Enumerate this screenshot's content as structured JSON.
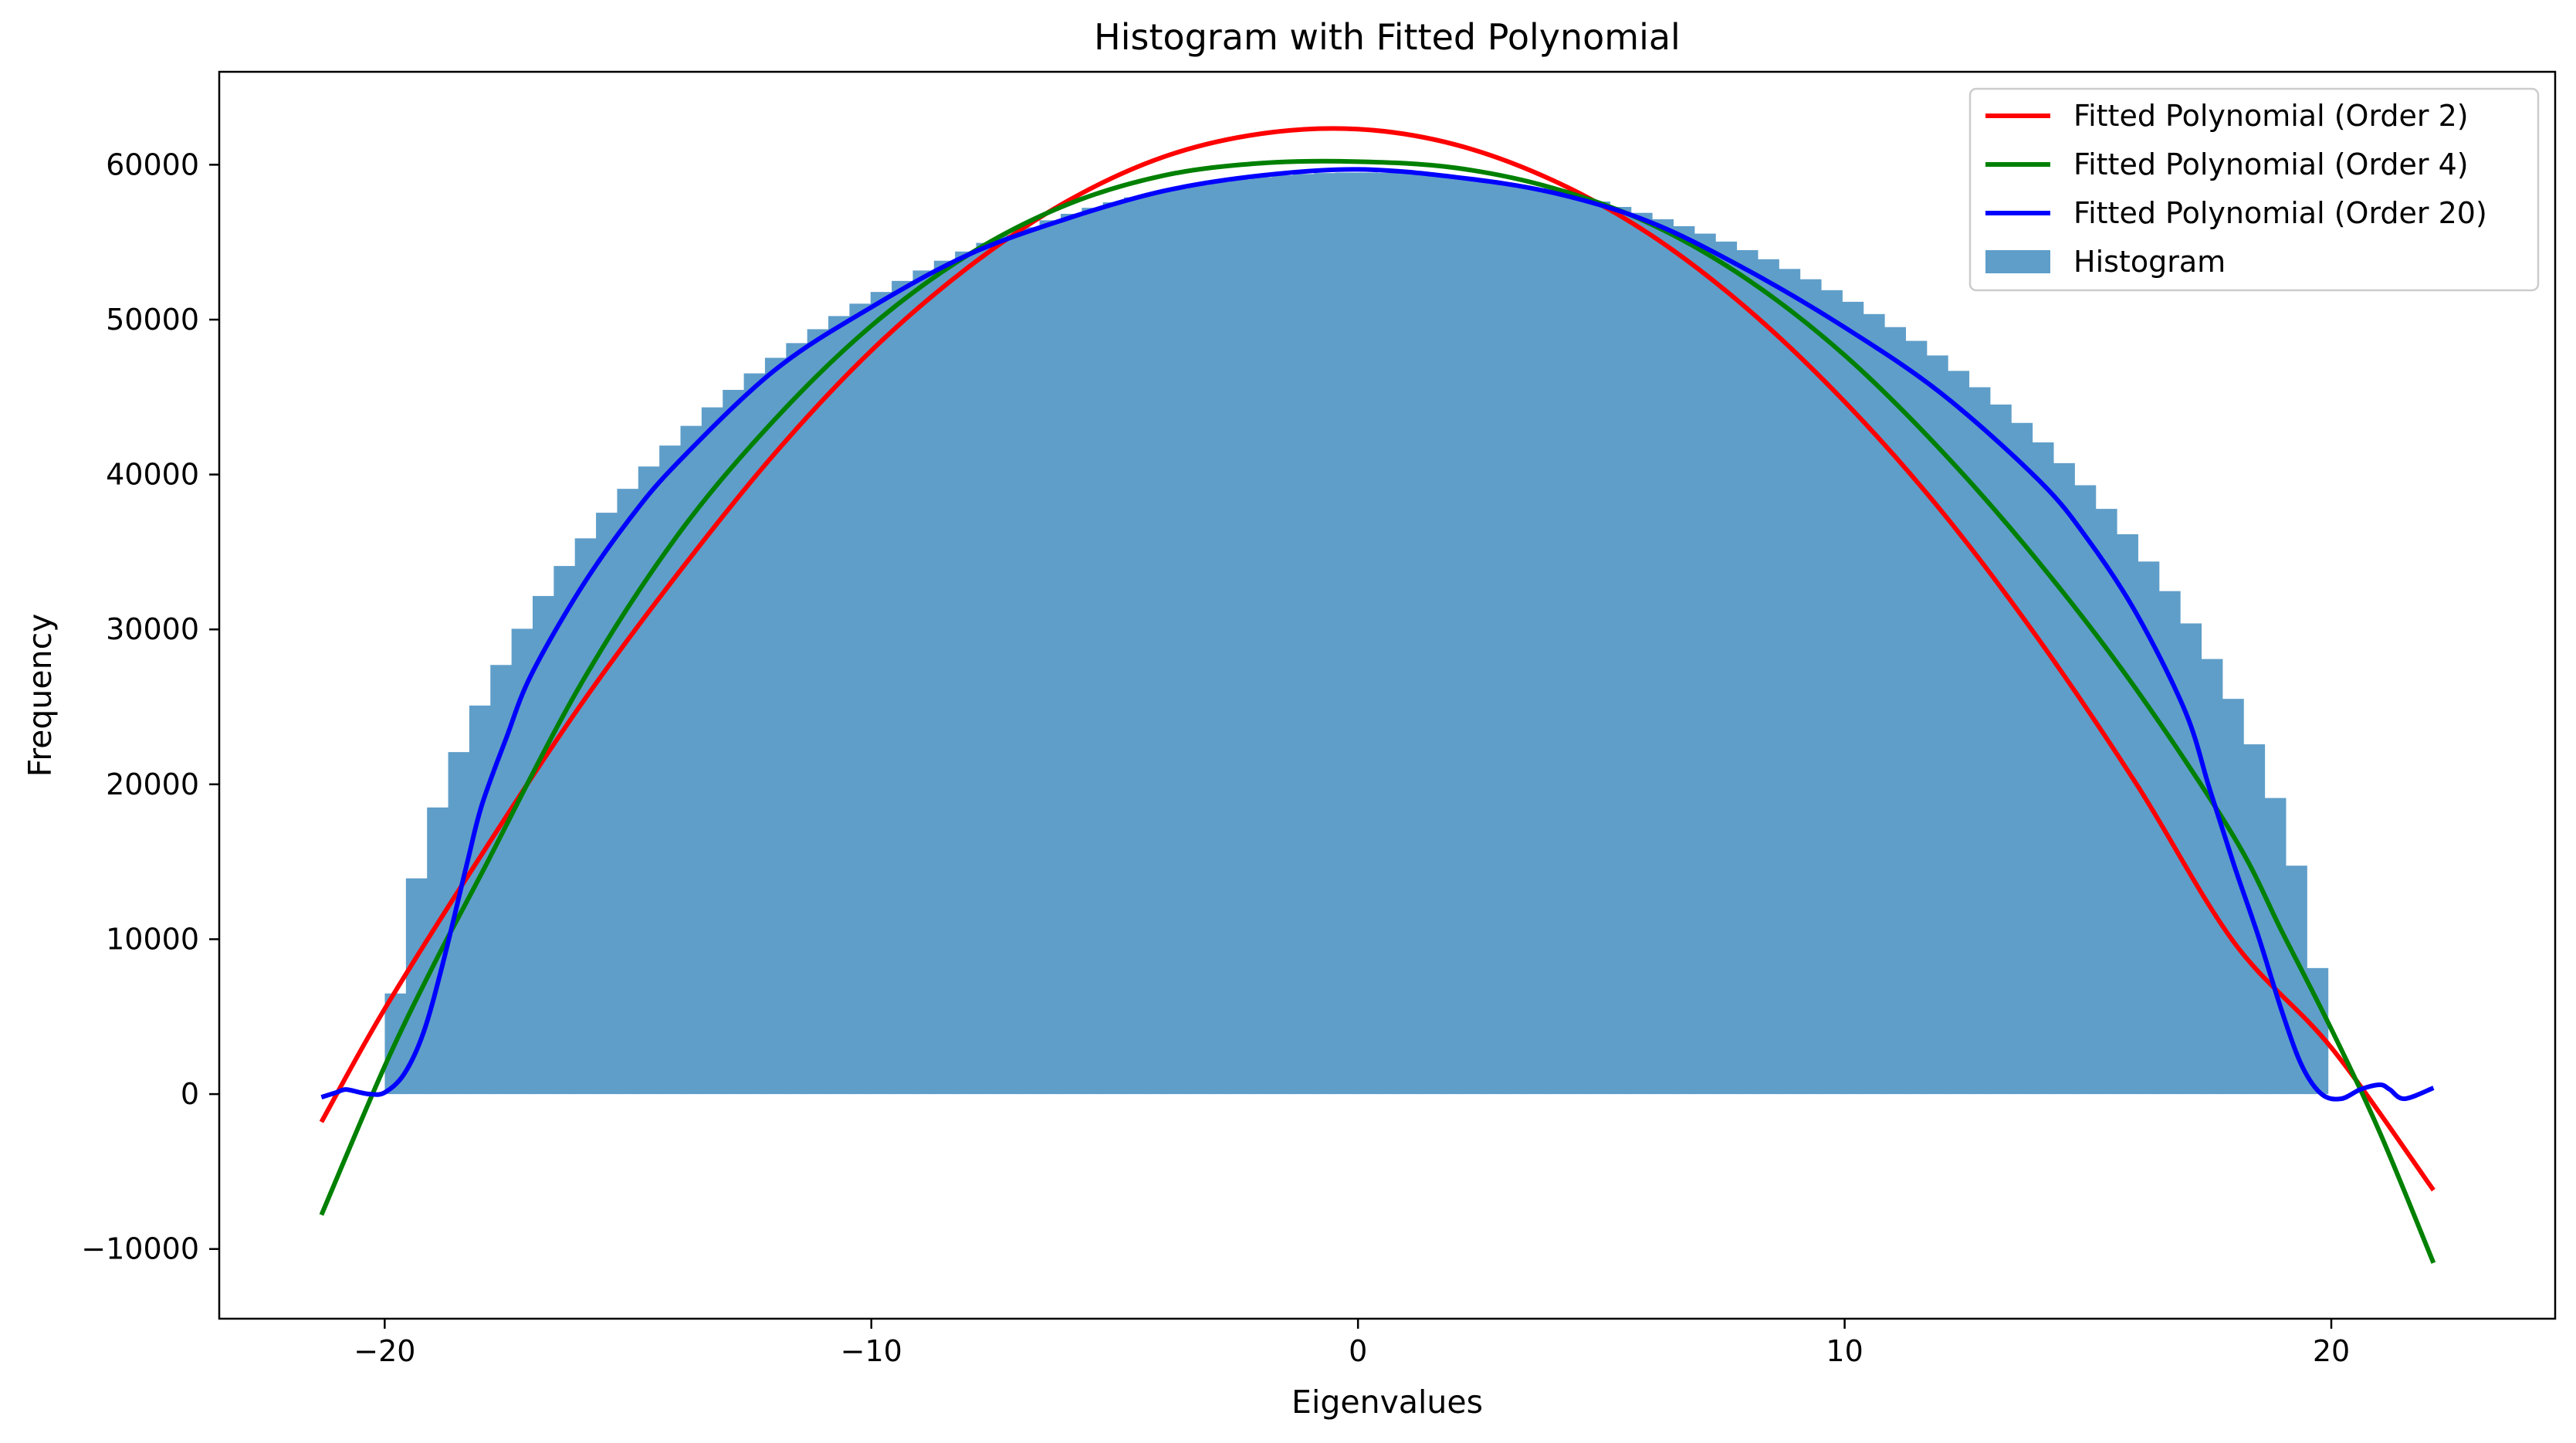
{
  "chart_data": {
    "type": "bar",
    "title": "Histogram with Fitted Polynomial",
    "xlabel": "Eigenvalues",
    "ylabel": "Frequency",
    "xlim": [
      -23.4,
      24.6
    ],
    "ylim": [
      -14500,
      66000
    ],
    "grid": false,
    "legend_position": "top-right",
    "x_ticks": [
      {
        "value": -20,
        "label": "−20"
      },
      {
        "value": -10,
        "label": "−10"
      },
      {
        "value": 0,
        "label": "0"
      },
      {
        "value": 10,
        "label": "10"
      },
      {
        "value": 20,
        "label": "20"
      }
    ],
    "y_ticks": [
      {
        "value": -10000,
        "label": "−10000"
      },
      {
        "value": 0,
        "label": "0"
      },
      {
        "value": 10000,
        "label": "10000"
      },
      {
        "value": 20000,
        "label": "20000"
      },
      {
        "value": 30000,
        "label": "30000"
      },
      {
        "value": 40000,
        "label": "40000"
      },
      {
        "value": 50000,
        "label": "50000"
      },
      {
        "value": 60000,
        "label": "60000"
      }
    ],
    "histogram": {
      "name": "Histogram",
      "color": "#5f9ec9",
      "bin_edges": [
        -21.3,
        22.1
      ],
      "bin_count": 100,
      "shape_radius": 19.9,
      "peak_frequency": 59500
    },
    "series": [
      {
        "name": "Fitted Polynomial (Order 2)",
        "color": "#ff0000",
        "x": [
          -21.3,
          -20,
          -18,
          -16,
          -14,
          -12,
          -10,
          -8,
          -6,
          -4,
          -2,
          0,
          2,
          4,
          6,
          8,
          10,
          12,
          14,
          16,
          18,
          20,
          22.1
        ],
        "y": [
          -1800,
          5500,
          15500,
          25000,
          33500,
          41300,
          48000,
          53400,
          57600,
          60500,
          62000,
          62300,
          61300,
          59000,
          55500,
          50700,
          44700,
          37600,
          29300,
          20000,
          9800,
          3000,
          -6200
        ]
      },
      {
        "name": "Fitted Polynomial (Order 4)",
        "color": "#008000",
        "x": [
          -21.3,
          -20,
          -19,
          -18,
          -16,
          -14,
          -12,
          -10,
          -8,
          -6,
          -4,
          -2,
          0,
          2,
          4,
          6,
          8,
          10,
          12,
          14,
          16,
          18,
          19,
          20,
          21,
          22.1
        ],
        "y": [
          -7800,
          1800,
          8300,
          14300,
          26300,
          36000,
          43500,
          49600,
          54200,
          57400,
          59300,
          60100,
          60200,
          59800,
          58500,
          56200,
          52600,
          47700,
          41500,
          34300,
          26100,
          16600,
          10400,
          4200,
          -2500,
          -10900
        ]
      },
      {
        "name": "Fitted Polynomial (Order 20)",
        "color": "#0000ff",
        "x": [
          -21.3,
          -21,
          -20.8,
          -20.5,
          -20.3,
          -20,
          -19.6,
          -19.2,
          -18.8,
          -18.3,
          -18,
          -17.5,
          -17,
          -16,
          -15,
          -14,
          -12,
          -10,
          -8,
          -6,
          -4,
          -2,
          0,
          2,
          4,
          6,
          8,
          10,
          12,
          14,
          15,
          16,
          17,
          17.5,
          18,
          18.5,
          19,
          19.4,
          19.8,
          20.2,
          20.6,
          21,
          21.2,
          21.5,
          22.1
        ],
        "y": [
          -200,
          100,
          300,
          100,
          0,
          100,
          1300,
          4000,
          8500,
          15000,
          18700,
          23000,
          27000,
          32500,
          37000,
          40700,
          46700,
          50800,
          54200,
          56500,
          58300,
          59300,
          59700,
          59200,
          58200,
          56300,
          53200,
          49500,
          45200,
          39600,
          35800,
          31000,
          24700,
          19700,
          14800,
          10200,
          5200,
          1800,
          0,
          -300,
          300,
          600,
          300,
          -300,
          400
        ]
      }
    ]
  }
}
